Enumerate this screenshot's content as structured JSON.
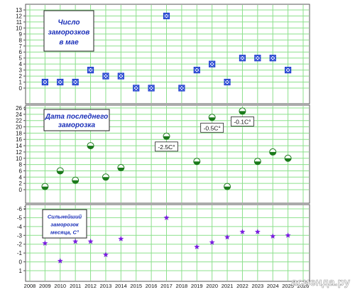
{
  "chart_data": [
    {
      "type": "scatter",
      "title": "Число заморозков в мае",
      "title_lines": [
        "Число",
        "заморозков",
        "в мае"
      ],
      "x_ticks": [
        2008,
        2009,
        2010,
        2011,
        2012,
        2013,
        2014,
        2015,
        2016,
        2017,
        2018,
        2019,
        2020,
        2021,
        2022,
        2023,
        2024,
        2025,
        2026
      ],
      "y_ticks": [
        0,
        1,
        2,
        3,
        4,
        5,
        6,
        7,
        8,
        9,
        10,
        11,
        12,
        13
      ],
      "xlim": [
        2008,
        2026
      ],
      "ylim": [
        0,
        13
      ],
      "grid": true,
      "marker": "boxed-x",
      "marker_color": "#1e3fd0",
      "x": [
        2009,
        2010,
        2011,
        2012,
        2013,
        2014,
        2015,
        2016,
        2017,
        2018,
        2019,
        2020,
        2021,
        2022,
        2023,
        2024,
        2025
      ],
      "values": [
        1,
        1,
        1,
        3,
        2,
        2,
        0,
        0,
        12,
        0,
        3,
        4,
        1,
        5,
        5,
        5,
        3
      ]
    },
    {
      "type": "scatter",
      "title": "Дата последнего заморозка",
      "title_lines": [
        "Дата последнего",
        "заморозка"
      ],
      "x_ticks": [
        2008,
        2009,
        2010,
        2011,
        2012,
        2013,
        2014,
        2015,
        2016,
        2017,
        2018,
        2019,
        2020,
        2021,
        2022,
        2023,
        2024,
        2025,
        2026
      ],
      "y_ticks": [
        0,
        2,
        4,
        6,
        8,
        10,
        12,
        14,
        16,
        18,
        20,
        22,
        24,
        26
      ],
      "xlim": [
        2008,
        2026
      ],
      "ylim": [
        0,
        26
      ],
      "grid": true,
      "marker": "half-filled-circle",
      "marker_color": "#1b7a1b",
      "x": [
        2009,
        2010,
        2011,
        2012,
        2013,
        2014,
        2017,
        2019,
        2020,
        2021,
        2022,
        2023,
        2024,
        2025
      ],
      "values": [
        1,
        6,
        3,
        14,
        4,
        7,
        17,
        9,
        23,
        1,
        25,
        9,
        12,
        10
      ],
      "annotations": [
        {
          "label": "-2.5С°",
          "x": 2017,
          "y": 17
        },
        {
          "label": "-0.5С°",
          "x": 2020,
          "y": 23
        },
        {
          "label": "-0.1С°",
          "x": 2022,
          "y": 25
        }
      ]
    },
    {
      "type": "scatter",
      "title": "Сильнейший заморозок месяца, С°",
      "title_lines": [
        "Сильнейший",
        "заморозок",
        "месяца, С°"
      ],
      "x_ticks": [
        2008,
        2009,
        2010,
        2011,
        2012,
        2013,
        2014,
        2015,
        2016,
        2017,
        2018,
        2019,
        2020,
        2021,
        2022,
        2023,
        2024,
        2025,
        2026
      ],
      "y_ticks": [
        -6,
        -5,
        -4,
        -3,
        -2,
        -1,
        0,
        1
      ],
      "xlim": [
        2008,
        2026
      ],
      "ylim": [
        -6,
        1
      ],
      "y_inverted": true,
      "grid": true,
      "marker": "star",
      "marker_color": "#7a1ee0",
      "x": [
        2009,
        2010,
        2011,
        2012,
        2013,
        2014,
        2017,
        2019,
        2020,
        2021,
        2022,
        2023,
        2024,
        2025
      ],
      "values": [
        -2.1,
        -0.1,
        -2.3,
        -2.3,
        -0.8,
        -2.6,
        -5,
        -1.7,
        -2.2,
        -2.8,
        -3.4,
        -3.4,
        -2.9,
        -3
      ]
    }
  ],
  "watermark": "асиенда.ру"
}
